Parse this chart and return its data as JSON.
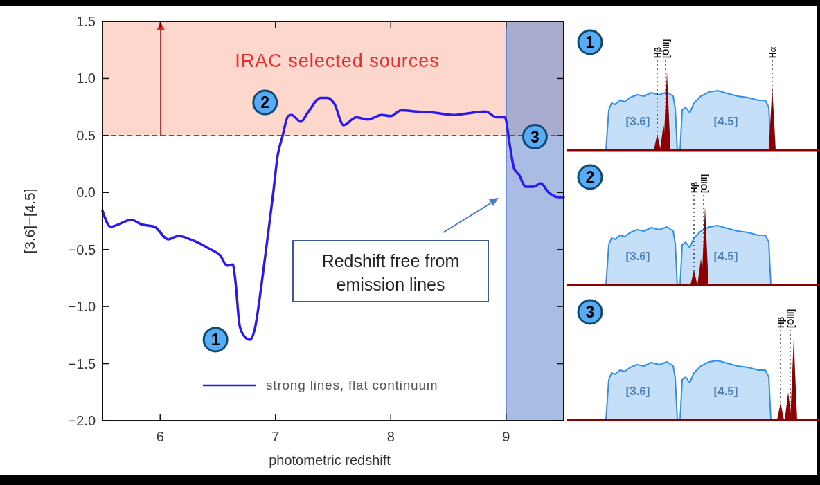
{
  "chart_data": [
    {
      "type": "line",
      "xlabel": "photometric redshift",
      "ylabel": "[3.6]−[4.5]",
      "legend": "bottom",
      "xlim": [
        5.5,
        9.5
      ],
      "xticks": [
        6,
        7,
        8,
        9
      ],
      "ylim": [
        -2,
        1.5
      ],
      "yticks": [
        {
          "value": -2,
          "label": "−2.0"
        },
        {
          "value": -1.5,
          "label": "−1.5"
        },
        {
          "value": -1,
          "label": "−1.0"
        },
        {
          "value": -0.5,
          "label": "−0.5"
        },
        {
          "value": 0,
          "label": "0.0"
        },
        {
          "value": 0.5,
          "label": "0.5"
        },
        {
          "value": 1,
          "label": "1.0"
        },
        {
          "value": 1.5,
          "label": "1.5"
        }
      ],
      "x": [
        5.5,
        5.57,
        5.75,
        5.84,
        5.95,
        6.07,
        6.16,
        6.26,
        6.44,
        6.52,
        6.58,
        6.63,
        6.65,
        6.69,
        6.73,
        6.78,
        6.82,
        6.88,
        6.93,
        6.98,
        7.02,
        7.06,
        7.11,
        7.14,
        7.22,
        7.28,
        7.39,
        7.45,
        7.51,
        7.59,
        7.7,
        7.8,
        7.92,
        8.0,
        8.09,
        8.22,
        8.38,
        8.55,
        8.64,
        8.82,
        8.92,
        8.99,
        9.03,
        9.07,
        9.11,
        9.17,
        9.24,
        9.3,
        9.37,
        9.45,
        9.5
      ],
      "series": [
        {
          "name": "strong lines, flat continuum",
          "color": "#2a1af0",
          "values": [
            -0.16,
            -0.3,
            -0.24,
            -0.28,
            -0.3,
            -0.41,
            -0.38,
            -0.41,
            -0.5,
            -0.55,
            -0.64,
            -0.63,
            -0.75,
            -1.17,
            -1.26,
            -1.29,
            -1.2,
            -0.8,
            -0.41,
            -0.01,
            0.33,
            0.49,
            0.67,
            0.68,
            0.62,
            0.7,
            0.83,
            0.83,
            0.78,
            0.59,
            0.66,
            0.64,
            0.68,
            0.67,
            0.72,
            0.71,
            0.7,
            0.68,
            0.69,
            0.71,
            0.66,
            0.66,
            0.43,
            0.21,
            0.16,
            0.05,
            0.05,
            0.08,
            0.0,
            -0.04,
            -0.04
          ]
        }
      ],
      "bands": [
        {
          "axis": "y",
          "from": 0.5,
          "to": 1.5,
          "label": "IRAC selected sources",
          "color": "#fdd6cc"
        },
        {
          "axis": "x",
          "from": 9,
          "to": 9.5,
          "color": "#6f8fd0"
        }
      ],
      "ref_lines": [
        {
          "axis": "y",
          "value": 0.5,
          "color": "#b03030",
          "line_style": "dashed"
        }
      ],
      "annotations": [
        "Redshift free from emission lines",
        {
          "text": "1",
          "x": 6.48,
          "y": -1.29
        },
        {
          "text": "2",
          "x": 6.91,
          "y": 0.79
        },
        {
          "text": "3",
          "x": 9.25,
          "y": 0.49
        }
      ]
    },
    {
      "type": "other",
      "annotations": [
        "1",
        "[3.6]",
        "[4.5]",
        "Hβ",
        "[OIII]",
        "Hα"
      ]
    },
    {
      "type": "other",
      "annotations": [
        "2",
        "[3.6]",
        "[4.5]",
        "Hβ",
        "[OIII]"
      ]
    },
    {
      "type": "other",
      "annotations": [
        "3",
        "[3.6]",
        "[4.5]",
        "Hβ",
        "[OIII]"
      ]
    }
  ]
}
